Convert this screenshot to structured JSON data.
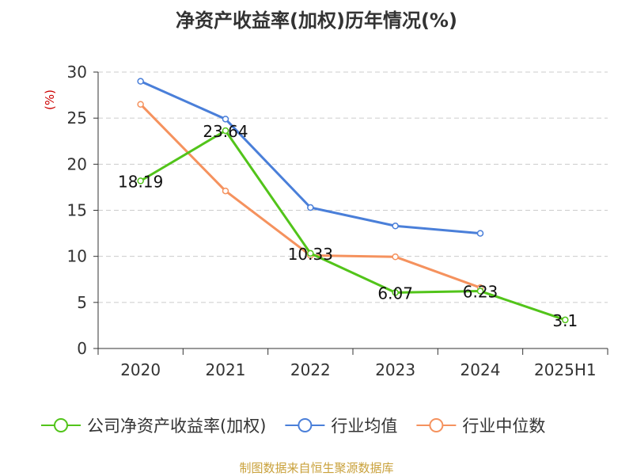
{
  "chart_data": {
    "type": "line",
    "title": "净资产收益率(加权)历年情况(%)",
    "ylabel": "(%)",
    "xlabel": "",
    "categories": [
      "2020",
      "2021",
      "2022",
      "2023",
      "2024",
      "2025H1"
    ],
    "ylim": [
      0,
      30
    ],
    "yticks": [
      0,
      5,
      10,
      15,
      20,
      25,
      30
    ],
    "grid": true,
    "legend_position": "bottom",
    "series": [
      {
        "name": "公司净资产收益率(加权)",
        "color": "#52c41a",
        "values": [
          18.19,
          23.64,
          10.33,
          6.07,
          6.23,
          3.1
        ],
        "labels": [
          "18.19",
          "23.64",
          "10.33",
          "6.07",
          "6.23",
          "3.1"
        ]
      },
      {
        "name": "行业均值",
        "color": "#4a7fd9",
        "values": [
          29.0,
          24.9,
          15.3,
          13.3,
          12.5,
          null
        ]
      },
      {
        "name": "行业中位数",
        "color": "#f5925e",
        "values": [
          26.5,
          17.1,
          10.1,
          9.95,
          6.6,
          null
        ]
      }
    ]
  },
  "source": "制图数据来自恒生聚源数据库",
  "colors": {
    "axis": "#333333",
    "grid": "#cccccc",
    "ylabel": "#cc0000"
  }
}
